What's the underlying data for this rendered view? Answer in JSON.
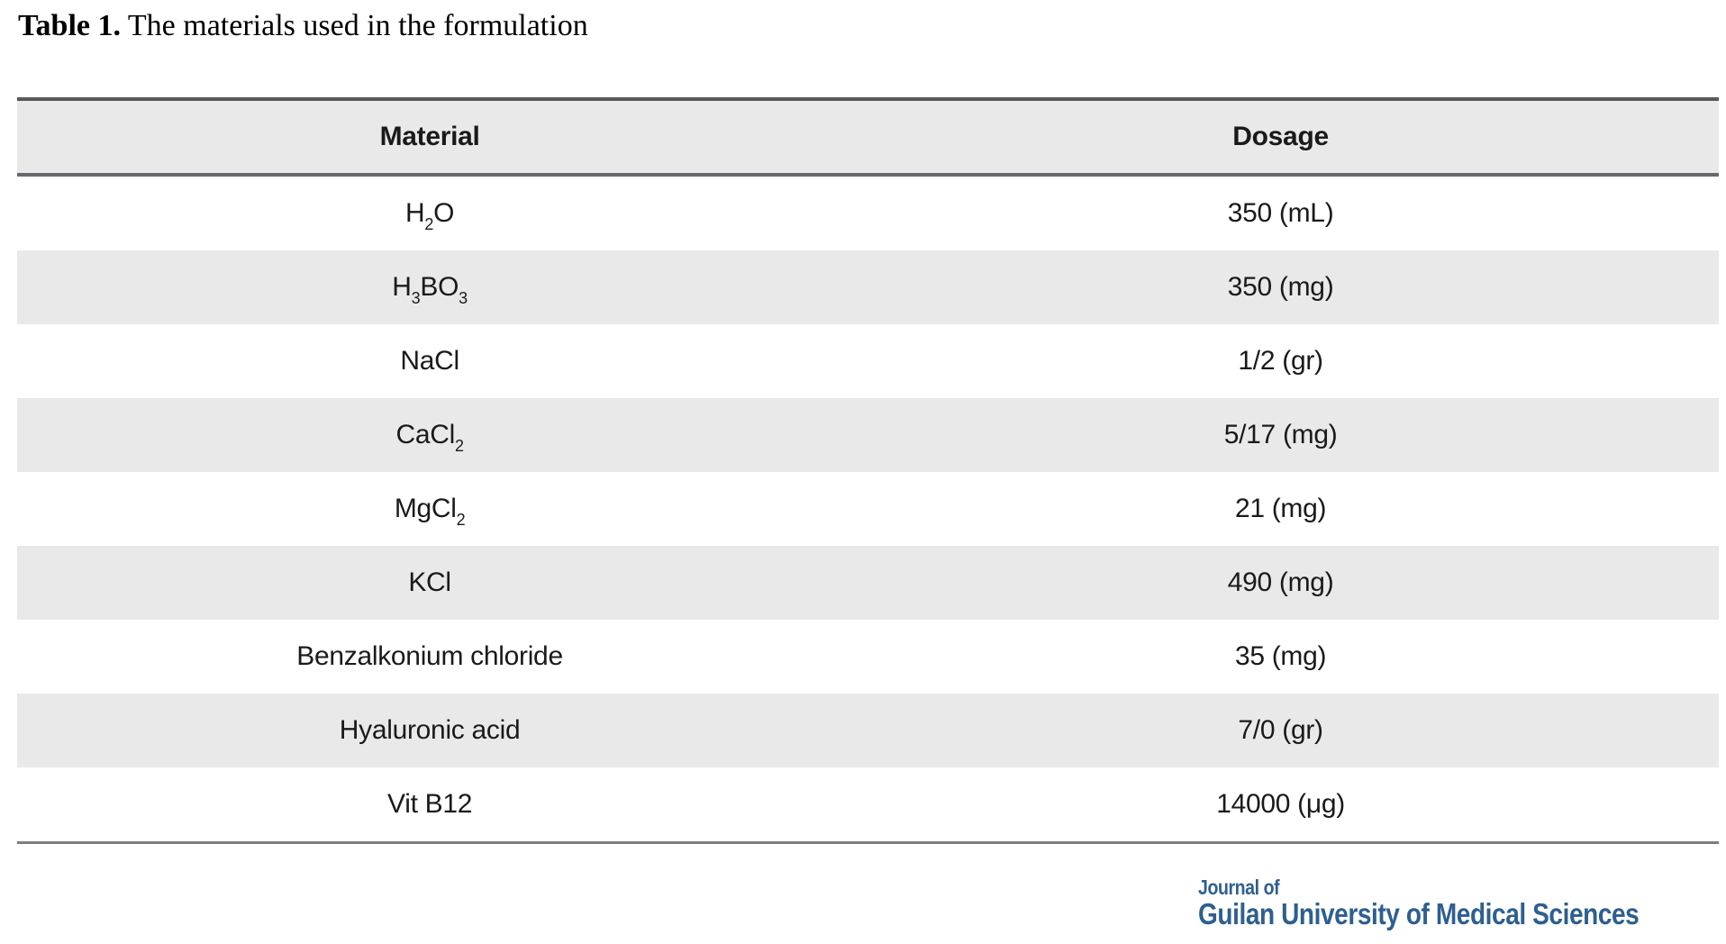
{
  "caption": {
    "label": "Table 1.",
    "text": " The materials used in the formulation"
  },
  "table": {
    "headers": [
      "Material",
      "Dosage"
    ],
    "rows": [
      {
        "material": "H_2O",
        "dosage": "350 (mL)"
      },
      {
        "material": "H_3BO_3",
        "dosage": "350 (mg)"
      },
      {
        "material": "NaCl",
        "dosage": "1/2 (gr)"
      },
      {
        "material": "CaCl_2",
        "dosage": "5/17 (mg)"
      },
      {
        "material": "MgCl_2",
        "dosage": "21 (mg)"
      },
      {
        "material": "KCl",
        "dosage": "490 (mg)"
      },
      {
        "material": "Benzalkonium chloride",
        "dosage": "35 (mg)"
      },
      {
        "material": "Hyaluronic acid",
        "dosage": "7/0 (gr)"
      },
      {
        "material": "Vit B12",
        "dosage": "14000 (μg)"
      }
    ]
  },
  "footer": {
    "journal_line1": "Journal of",
    "journal_line2": "Guilan University of Medical Sciences"
  },
  "colors": {
    "stripe_bg": "#e9e9e9",
    "border_top": "#58585c",
    "border_header_bottom": "#67676c",
    "border_bottom": "#7e7e7e",
    "logo_blue": "#2e5f8f"
  }
}
